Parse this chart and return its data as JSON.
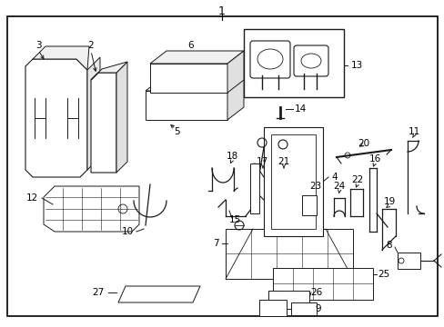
{
  "background_color": "#ffffff",
  "border_color": "#000000",
  "line_color": "#1a1a1a",
  "title": "1",
  "figsize": [
    4.89,
    3.6
  ],
  "dpi": 100
}
